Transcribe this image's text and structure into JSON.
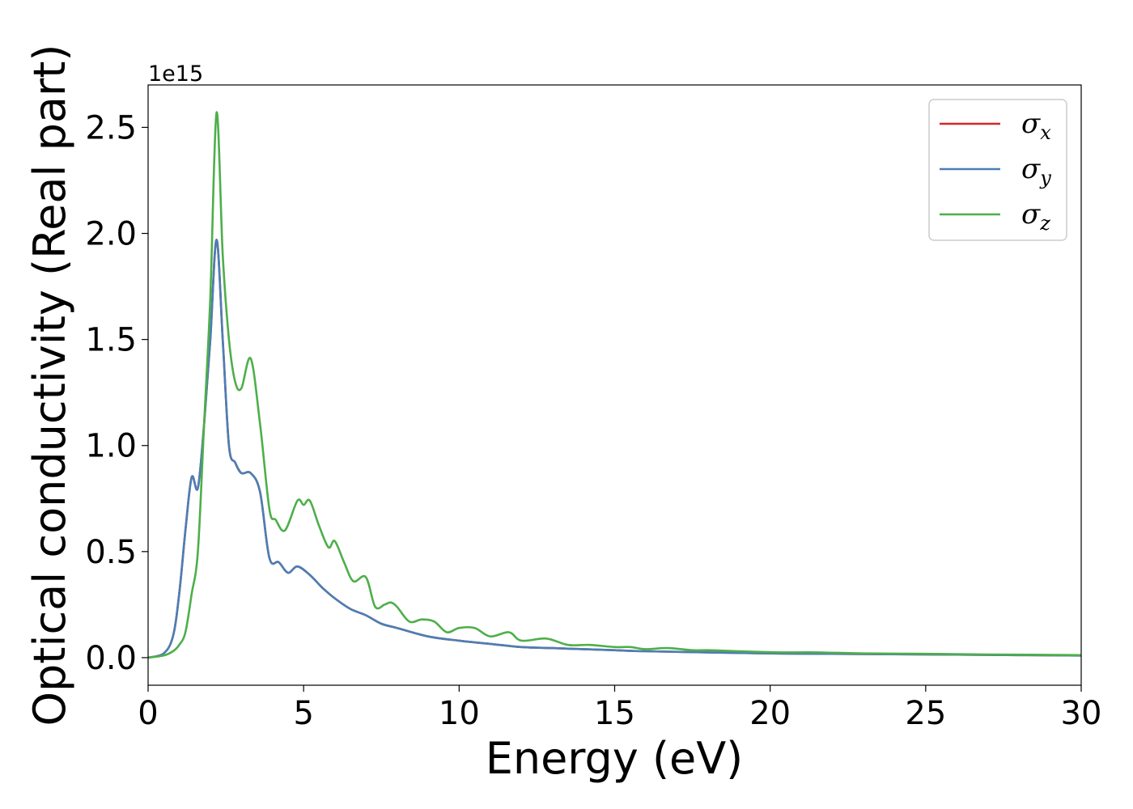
{
  "chart_data": {
    "type": "line",
    "title": "",
    "xlabel": "Energy (eV)",
    "ylabel": "Optical conductivity (Real part)",
    "y_offset_label": "1e15",
    "y_scale": 1000000000000000.0,
    "xlim": [
      0,
      30
    ],
    "ylim": [
      -0.13,
      2.7
    ],
    "xticks": [
      0,
      5,
      10,
      15,
      20,
      25,
      30
    ],
    "xtick_labels": [
      "0",
      "5",
      "10",
      "15",
      "20",
      "25",
      "30"
    ],
    "yticks": [
      0.0,
      0.5,
      1.0,
      1.5,
      2.0,
      2.5
    ],
    "ytick_labels": [
      "0.0",
      "0.5",
      "1.0",
      "1.5",
      "2.0",
      "2.5"
    ],
    "grid": false,
    "legend_position": "top-right",
    "series": [
      {
        "name": "σ",
        "subscript": "x",
        "color": "#d62728",
        "x": [
          0,
          0.5,
          0.8,
          1.0,
          1.2,
          1.4,
          1.6,
          1.8,
          2.0,
          2.2,
          2.4,
          2.6,
          2.8,
          3.0,
          3.3,
          3.6,
          3.9,
          4.2,
          4.5,
          4.8,
          5.2,
          5.6,
          6.0,
          6.5,
          7.0,
          7.5,
          8.0,
          9.0,
          10.0,
          11.0,
          12.0,
          13.0,
          14.0,
          15.0,
          16.0,
          18.0,
          20.0,
          22.0,
          25.0,
          28.0,
          30.0
        ],
        "y": [
          0.0,
          0.02,
          0.1,
          0.3,
          0.6,
          0.85,
          0.8,
          1.1,
          1.5,
          1.97,
          1.5,
          1.0,
          0.92,
          0.87,
          0.87,
          0.78,
          0.47,
          0.45,
          0.4,
          0.43,
          0.39,
          0.33,
          0.28,
          0.23,
          0.2,
          0.16,
          0.14,
          0.1,
          0.08,
          0.065,
          0.05,
          0.045,
          0.04,
          0.035,
          0.03,
          0.025,
          0.02,
          0.018,
          0.015,
          0.012,
          0.01
        ]
      },
      {
        "name": "σ",
        "subscript": "y",
        "color": "#4a7fb5",
        "x": [
          0,
          0.5,
          0.8,
          1.0,
          1.2,
          1.4,
          1.6,
          1.8,
          2.0,
          2.2,
          2.4,
          2.6,
          2.8,
          3.0,
          3.3,
          3.6,
          3.9,
          4.2,
          4.5,
          4.8,
          5.2,
          5.6,
          6.0,
          6.5,
          7.0,
          7.5,
          8.0,
          9.0,
          10.0,
          11.0,
          12.0,
          13.0,
          14.0,
          15.0,
          16.0,
          18.0,
          20.0,
          22.0,
          25.0,
          28.0,
          30.0
        ],
        "y": [
          0.0,
          0.02,
          0.1,
          0.3,
          0.6,
          0.85,
          0.8,
          1.1,
          1.5,
          1.97,
          1.5,
          1.0,
          0.92,
          0.87,
          0.87,
          0.78,
          0.47,
          0.45,
          0.4,
          0.43,
          0.39,
          0.33,
          0.28,
          0.23,
          0.2,
          0.16,
          0.14,
          0.1,
          0.08,
          0.065,
          0.05,
          0.045,
          0.04,
          0.035,
          0.03,
          0.025,
          0.02,
          0.018,
          0.015,
          0.012,
          0.01
        ]
      },
      {
        "name": "σ",
        "subscript": "z",
        "color": "#4daf4a",
        "x": [
          0,
          0.5,
          0.8,
          1.0,
          1.2,
          1.4,
          1.6,
          1.8,
          2.0,
          2.2,
          2.4,
          2.6,
          2.8,
          3.0,
          3.3,
          3.6,
          3.9,
          4.1,
          4.4,
          4.8,
          5.0,
          5.2,
          5.5,
          5.8,
          6.0,
          6.3,
          6.6,
          7.0,
          7.3,
          7.6,
          7.8,
          8.0,
          8.4,
          8.8,
          9.2,
          9.6,
          10.0,
          10.5,
          11.0,
          11.6,
          12.0,
          12.8,
          13.5,
          14.2,
          15.0,
          15.5,
          16.0,
          16.7,
          17.5,
          18.0,
          19.0,
          20.3,
          21.5,
          23.0,
          25.0,
          27.0,
          30.0
        ],
        "y": [
          0.0,
          0.01,
          0.03,
          0.06,
          0.12,
          0.3,
          0.5,
          1.1,
          1.7,
          2.57,
          1.9,
          1.5,
          1.3,
          1.27,
          1.41,
          1.1,
          0.7,
          0.65,
          0.6,
          0.74,
          0.72,
          0.74,
          0.62,
          0.52,
          0.55,
          0.45,
          0.36,
          0.38,
          0.24,
          0.25,
          0.26,
          0.24,
          0.17,
          0.18,
          0.17,
          0.12,
          0.14,
          0.14,
          0.1,
          0.12,
          0.08,
          0.09,
          0.06,
          0.06,
          0.05,
          0.05,
          0.04,
          0.045,
          0.035,
          0.035,
          0.03,
          0.025,
          0.025,
          0.02,
          0.018,
          0.015,
          0.012
        ]
      }
    ]
  }
}
